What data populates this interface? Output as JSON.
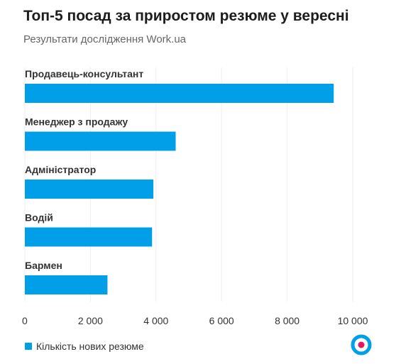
{
  "chart_data": {
    "type": "bar",
    "orientation": "horizontal",
    "title": "Топ-5 посад за приростом резюме у вересні",
    "subtitle": "Результати дослідження Work.ua",
    "categories": [
      "Продавець-консультант",
      "Менеджер з продажу",
      "Адміністратор",
      "Водій",
      "Бармен"
    ],
    "series": [
      {
        "name": "Кількість нових резюме",
        "values": [
          9420,
          4600,
          3920,
          3880,
          2520
        ]
      }
    ],
    "xlim": [
      0,
      10000
    ],
    "xticks": [
      0,
      2000,
      4000,
      6000,
      8000,
      10000
    ],
    "xtick_labels": [
      "0",
      "2 000",
      "4 000",
      "6 000",
      "8 000",
      "10 000"
    ],
    "xlabel": "",
    "ylabel": "",
    "grid": "vertical",
    "legend_position": "bottom-left",
    "colors": {
      "bar": "#009fe8",
      "grid": "#eeeeee",
      "logo_ring": "#009fe8",
      "logo_dot": "#e8175d"
    }
  },
  "logo": {
    "icon": "work-ua-logo-icon"
  }
}
